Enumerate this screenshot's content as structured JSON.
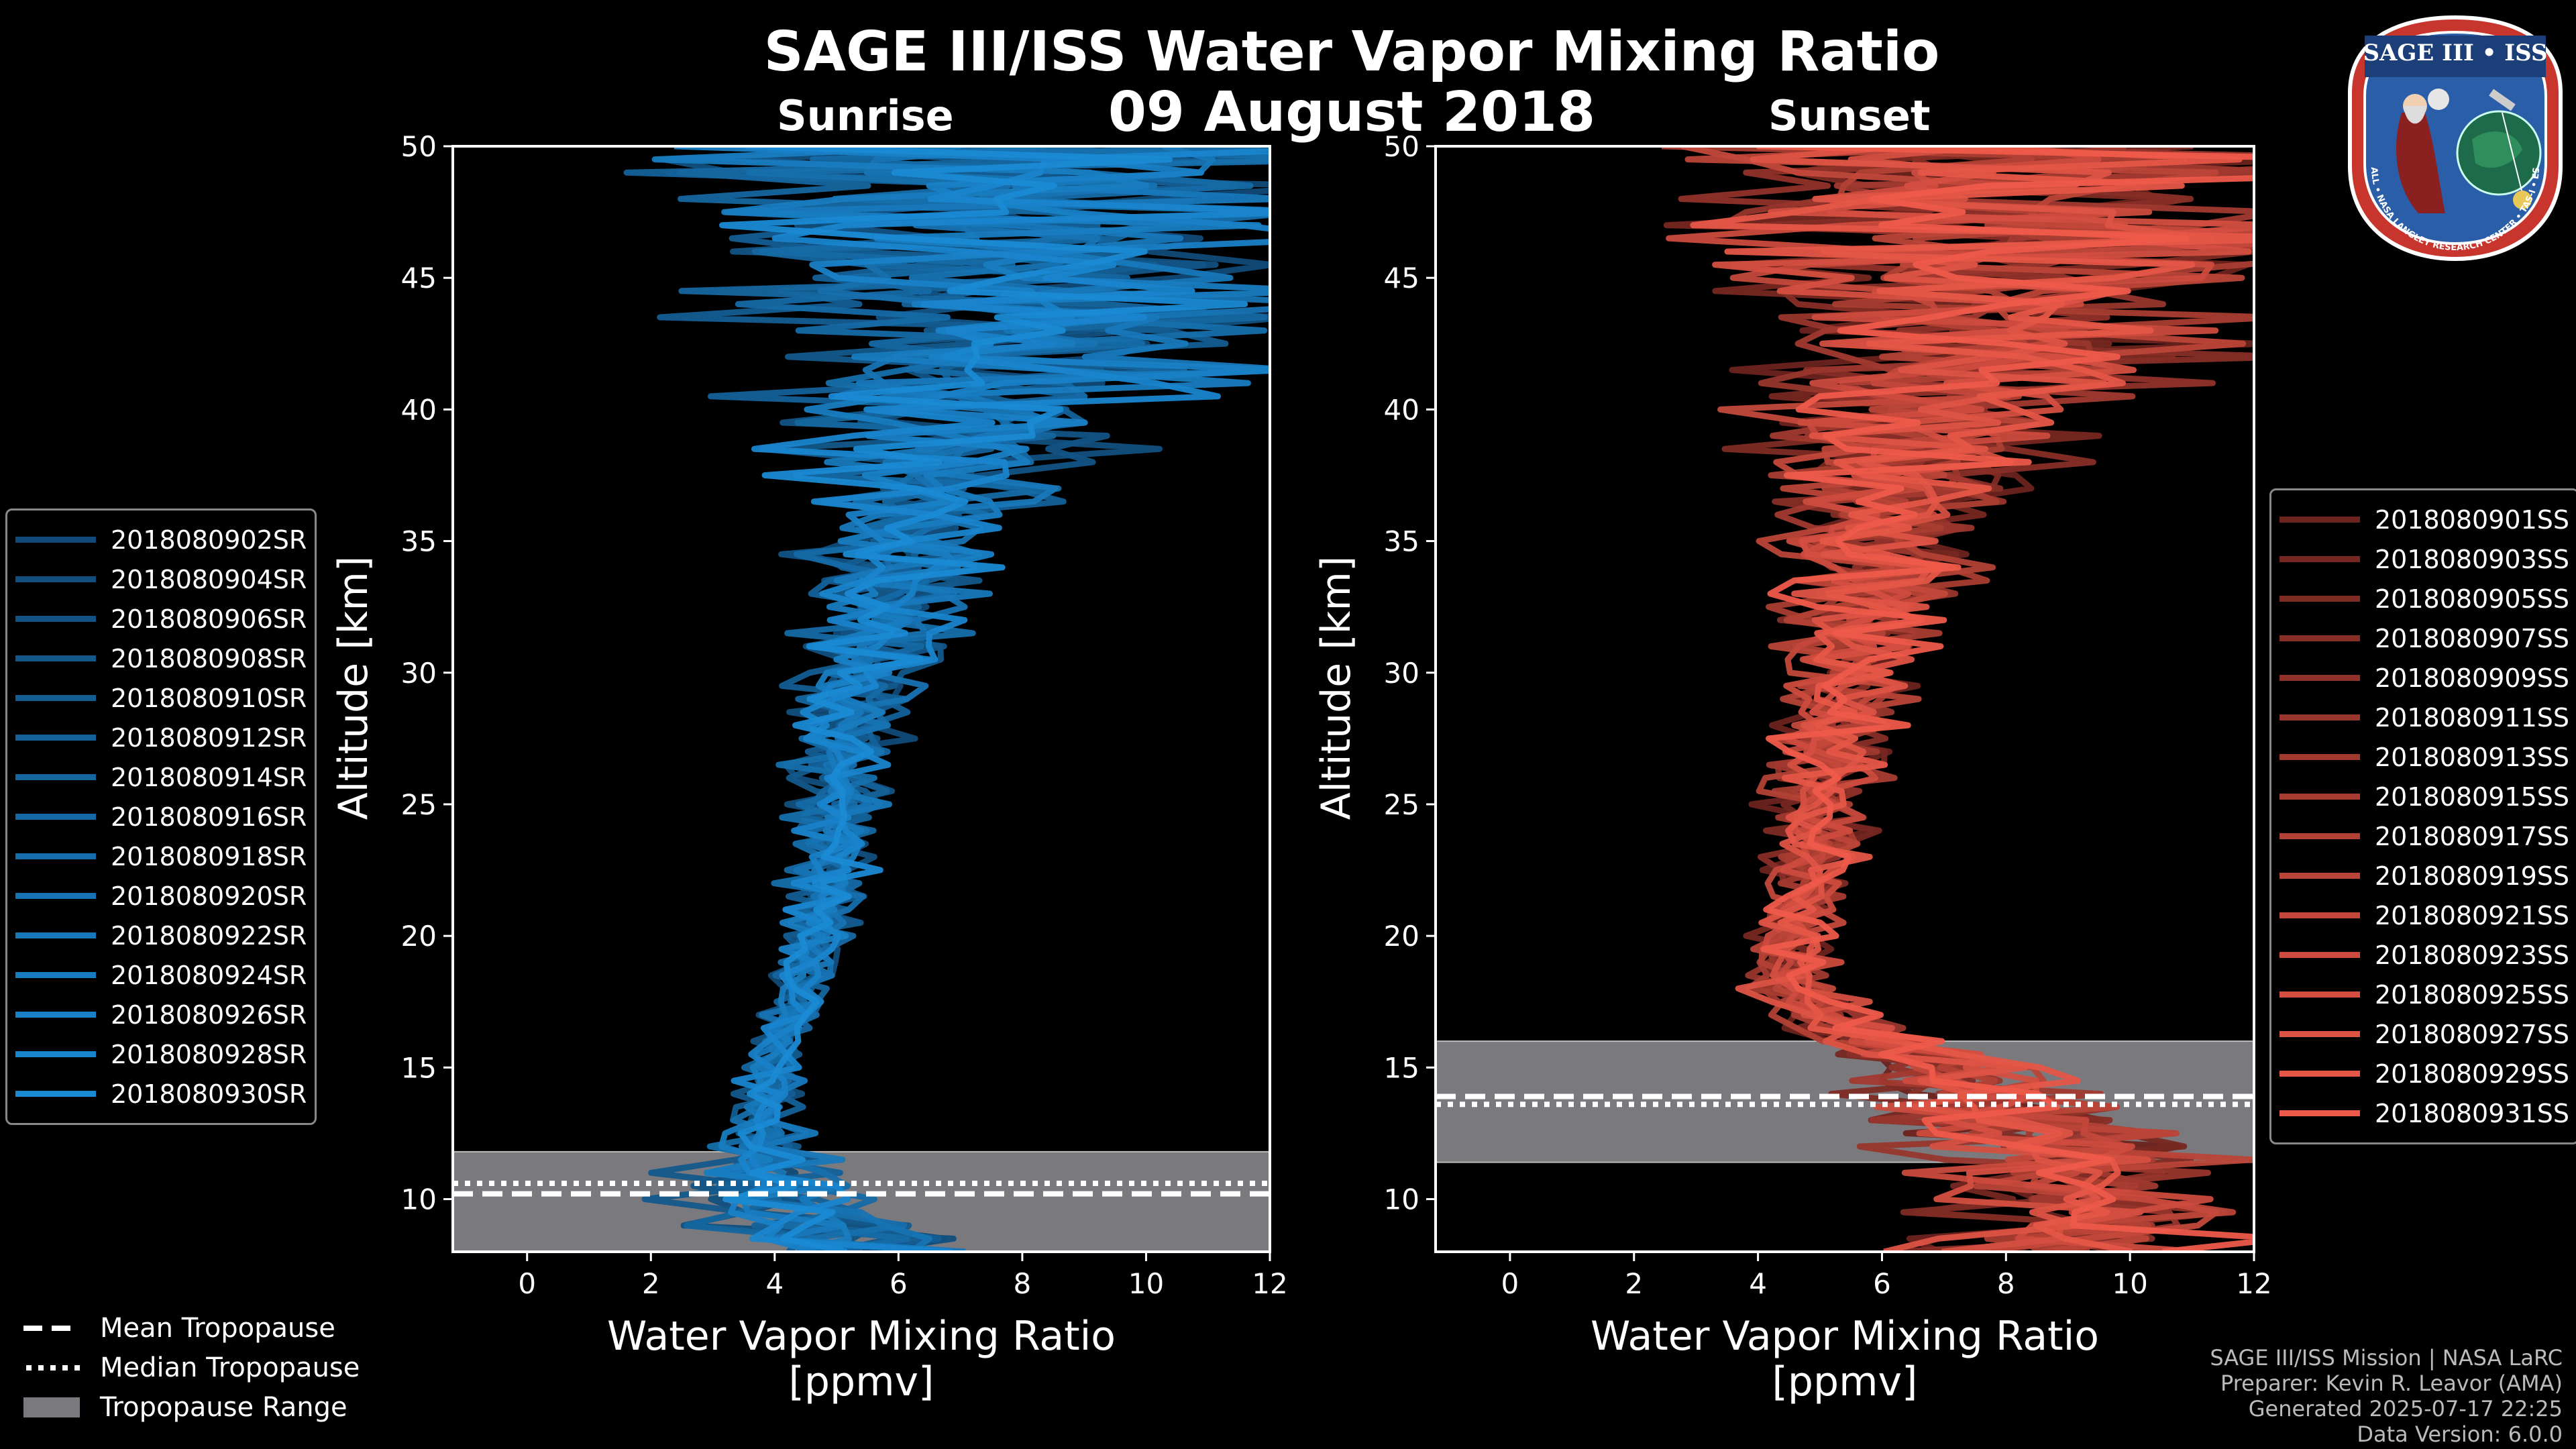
{
  "header": {
    "title": "SAGE III/ISS Water Vapor Mixing Ratio",
    "date": "09 August 2018",
    "sunrise_label": "Sunrise",
    "sunset_label": "Sunset"
  },
  "colors": {
    "sunrise": "#1a8ad4",
    "sunset": "#ee5a4a",
    "tropopause_range": "#7a7a7e"
  },
  "chart_data": [
    {
      "type": "line",
      "title": "Sunrise",
      "xlabel": "Water Vapor Mixing Ratio",
      "xlabel_unit": "[ppmv]",
      "ylabel": "Altitude [km]",
      "xlim": [
        -1.2,
        12
      ],
      "ylim": [
        8,
        50
      ],
      "xticks": [
        0,
        2,
        4,
        6,
        8,
        10,
        12
      ],
      "yticks": [
        10,
        15,
        20,
        25,
        30,
        35,
        40,
        45,
        50
      ],
      "tropopause": {
        "mean_km": 10.2,
        "median_km": 10.6,
        "range_km": [
          8,
          11.8
        ]
      },
      "profile_shape": {
        "altitude": [
          8,
          10,
          12,
          13,
          15,
          18,
          20,
          22,
          25,
          28,
          30,
          33,
          35,
          38,
          40,
          42,
          45,
          48,
          50
        ],
        "center": [
          5.2,
          4.0,
          3.8,
          3.8,
          4.0,
          4.4,
          4.6,
          4.8,
          5.0,
          5.3,
          5.5,
          5.8,
          6.0,
          6.5,
          7.5,
          8.0,
          8.0,
          8.0,
          8.0
        ],
        "spread": [
          3.5,
          2.5,
          1.5,
          0.8,
          0.7,
          0.8,
          0.9,
          1.0,
          1.2,
          1.4,
          1.6,
          2.0,
          2.4,
          3.5,
          5.0,
          6.5,
          8.0,
          9.0,
          9.0
        ]
      },
      "series": [
        {
          "name": "2018080902SR"
        },
        {
          "name": "2018080904SR"
        },
        {
          "name": "2018080906SR"
        },
        {
          "name": "2018080908SR"
        },
        {
          "name": "2018080910SR"
        },
        {
          "name": "2018080912SR"
        },
        {
          "name": "2018080914SR"
        },
        {
          "name": "2018080916SR"
        },
        {
          "name": "2018080918SR"
        },
        {
          "name": "2018080920SR"
        },
        {
          "name": "2018080922SR"
        },
        {
          "name": "2018080924SR"
        },
        {
          "name": "2018080926SR"
        },
        {
          "name": "2018080928SR"
        },
        {
          "name": "2018080930SR"
        }
      ]
    },
    {
      "type": "line",
      "title": "Sunset",
      "xlabel": "Water Vapor Mixing Ratio",
      "xlabel_unit": "[ppmv]",
      "ylabel": "Altitude [km]",
      "xlim": [
        -1.2,
        12
      ],
      "ylim": [
        8,
        50
      ],
      "xticks": [
        0,
        2,
        4,
        6,
        8,
        10,
        12
      ],
      "yticks": [
        10,
        15,
        20,
        25,
        30,
        35,
        40,
        45,
        50
      ],
      "tropopause": {
        "mean_km": 13.9,
        "median_km": 13.6,
        "range_km": [
          11.4,
          16.0
        ]
      },
      "profile_shape": {
        "altitude": [
          8,
          10,
          12,
          13,
          15,
          16,
          17,
          18,
          20,
          22,
          25,
          28,
          30,
          33,
          35,
          38,
          40,
          42,
          45,
          48,
          50
        ],
        "center": [
          9.0,
          9.0,
          9.0,
          8.0,
          7.0,
          6.0,
          5.0,
          4.5,
          4.5,
          4.8,
          5.0,
          5.3,
          5.5,
          5.8,
          6.0,
          6.5,
          7.0,
          8.0,
          8.0,
          8.0,
          8.0
        ],
        "spread": [
          4.0,
          4.0,
          4.0,
          3.0,
          2.5,
          2.0,
          1.5,
          1.0,
          1.0,
          1.1,
          1.3,
          1.5,
          1.8,
          2.2,
          2.6,
          3.5,
          4.5,
          6.0,
          7.5,
          8.5,
          9.0
        ]
      },
      "series": [
        {
          "name": "2018080901SS"
        },
        {
          "name": "2018080903SS"
        },
        {
          "name": "2018080905SS"
        },
        {
          "name": "2018080907SS"
        },
        {
          "name": "2018080909SS"
        },
        {
          "name": "2018080911SS"
        },
        {
          "name": "2018080913SS"
        },
        {
          "name": "2018080915SS"
        },
        {
          "name": "2018080917SS"
        },
        {
          "name": "2018080919SS"
        },
        {
          "name": "2018080921SS"
        },
        {
          "name": "2018080923SS"
        },
        {
          "name": "2018080925SS"
        },
        {
          "name": "2018080927SS"
        },
        {
          "name": "2018080929SS"
        },
        {
          "name": "2018080931SS"
        }
      ]
    }
  ],
  "tropopause_legend": {
    "mean": "Mean Tropopause",
    "median": "Median Tropopause",
    "range": "Tropopause Range"
  },
  "credits": {
    "line1": "SAGE III/ISS Mission | NASA LaRC",
    "line2": "Preparer: Kevin R. Leavor (AMA)",
    "line3": "Generated 2025-07-17 22:25",
    "line4": "Data Version: 6.0.0"
  },
  "logo": {
    "title": "SAGE III • ISS",
    "ring_text": "BALL • NASA LANGLEY RESEARCH CENTER • TAS-I • ESA"
  }
}
